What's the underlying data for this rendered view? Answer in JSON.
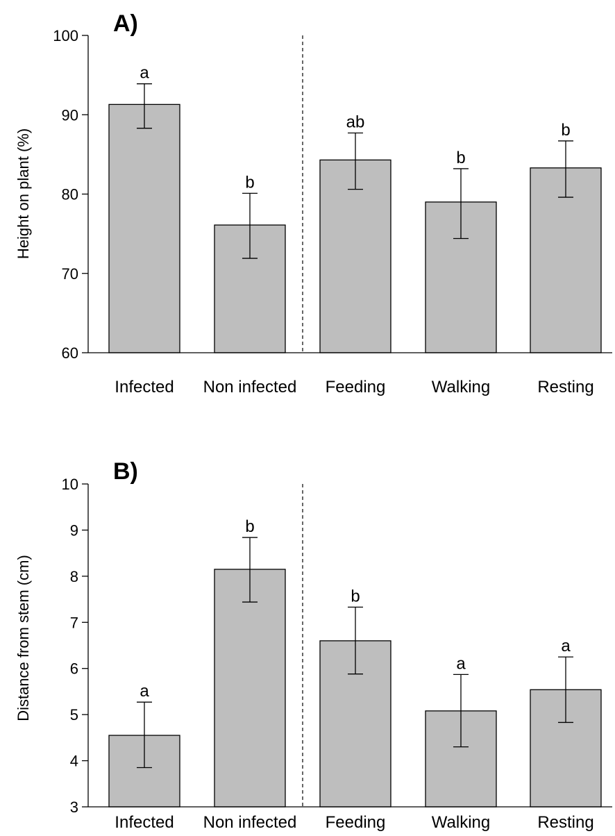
{
  "chart_data": [
    {
      "type": "bar",
      "panel_label": "A)",
      "categories": [
        "Infected",
        "Non infected",
        "Feeding",
        "Walking",
        "Resting"
      ],
      "values": [
        91.3,
        76.1,
        84.3,
        79.0,
        83.3
      ],
      "error_upper": [
        93.9,
        80.1,
        87.7,
        83.2,
        86.7
      ],
      "error_lower": [
        88.3,
        71.9,
        80.6,
        74.4,
        79.6
      ],
      "letters": [
        "a",
        "b",
        "ab",
        "b",
        "b"
      ],
      "ylabel": "Height on plant (%)",
      "xlabel": "",
      "ylim": [
        60,
        100
      ],
      "yticks": [
        60,
        70,
        80,
        90,
        100
      ],
      "divider_after_index": 1,
      "bar_color": "#bebebe",
      "grid": false
    },
    {
      "type": "bar",
      "panel_label": "B)",
      "categories": [
        "Infected",
        "Non infected",
        "Feeding",
        "Walking",
        "Resting"
      ],
      "values": [
        4.55,
        8.15,
        6.6,
        5.08,
        5.54
      ],
      "error_upper": [
        5.27,
        8.84,
        7.33,
        5.87,
        6.25
      ],
      "error_lower": [
        3.85,
        7.44,
        5.88,
        4.3,
        4.83
      ],
      "letters": [
        "a",
        "b",
        "b",
        "a",
        "a"
      ],
      "ylabel": "Distance from stem (cm)",
      "xlabel": "",
      "ylim": [
        3,
        10
      ],
      "yticks": [
        3,
        4,
        5,
        6,
        7,
        8,
        9,
        10
      ],
      "divider_after_index": 1,
      "bar_color": "#bebebe",
      "grid": false
    }
  ]
}
